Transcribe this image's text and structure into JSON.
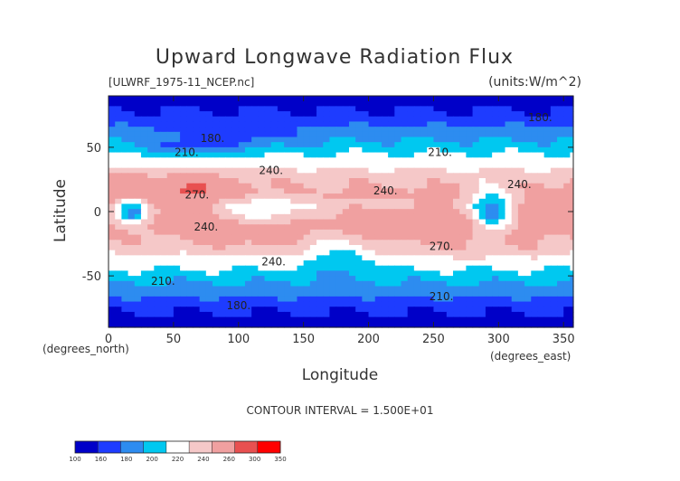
{
  "chart_data": {
    "type": "heatmap",
    "title": "Upward Longwave Radiation Flux",
    "file_label": "[ULWRF_1975-11_NCEP.nc]",
    "units_label": "(units:W/m^2)",
    "xlabel": "Longitude",
    "ylabel": "Latitude",
    "x_unit_label": "(degrees_east)",
    "y_unit_label": "(degrees_north)",
    "xlim": [
      0,
      357.5
    ],
    "ylim": [
      -90,
      90
    ],
    "x_ticks": [
      0,
      50,
      100,
      150,
      200,
      250,
      300,
      350
    ],
    "y_ticks": [
      50,
      0,
      -50
    ],
    "contour_interval_text": "CONTOUR INTERVAL = 1.500E+01",
    "colorbar": {
      "levels": [
        100,
        160,
        180,
        200,
        220,
        240,
        260,
        300,
        350
      ],
      "colors": [
        "#0000c8",
        "#1e3cff",
        "#2d8cf0",
        "#00c8f0",
        "#ffffff",
        "#f5c8c8",
        "#f0a0a0",
        "#e85050",
        "#ff0000"
      ]
    },
    "contour_labels": [
      {
        "text": "210.",
        "lon": 60,
        "lat": 46
      },
      {
        "text": "180.",
        "lon": 80,
        "lat": 57
      },
      {
        "text": "240.",
        "lon": 125,
        "lat": 32
      },
      {
        "text": "270.",
        "lon": 68,
        "lat": 13
      },
      {
        "text": "240.",
        "lon": 75,
        "lat": -12
      },
      {
        "text": "240.",
        "lon": 127,
        "lat": -39
      },
      {
        "text": "210.",
        "lon": 42,
        "lat": -54
      },
      {
        "text": "180.",
        "lon": 100,
        "lat": -73
      },
      {
        "text": "210.",
        "lon": 255,
        "lat": 46
      },
      {
        "text": "240.",
        "lon": 213,
        "lat": 16
      },
      {
        "text": "240.",
        "lon": 316,
        "lat": 21
      },
      {
        "text": "180.",
        "lon": 332,
        "lat": 73
      },
      {
        "text": "270.",
        "lon": 256,
        "lat": -27
      },
      {
        "text": "210.",
        "lon": 256,
        "lat": -66
      }
    ]
  }
}
